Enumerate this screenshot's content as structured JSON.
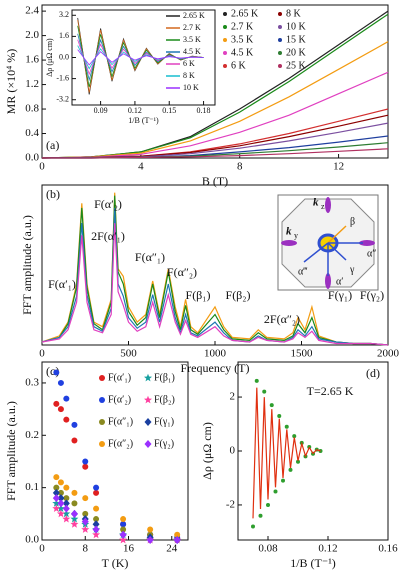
{
  "chart_data": [
    {
      "type": "line",
      "panel": "(a)",
      "xlabel": "B (T)",
      "ylabel": "MR (×10⁴ %)",
      "x": [
        0,
        2,
        4,
        6,
        8,
        10,
        12,
        14
      ],
      "xlim": [
        0,
        14
      ],
      "xticks": [
        0,
        4,
        8,
        12
      ],
      "ylim": [
        0,
        2.5
      ],
      "yticks": [
        {
          "value": 0,
          "label": "0.0"
        },
        0.4,
        0.8,
        1.2,
        1.6,
        {
          "value": 2,
          "label": "2.0"
        },
        2.4
      ],
      "series": [
        {
          "name": "2.65 K",
          "color": "#222222",
          "values": [
            0,
            0.02,
            0.1,
            0.35,
            0.8,
            1.3,
            1.85,
            2.4
          ]
        },
        {
          "name": "2.7 K",
          "color": "#1a8a1a",
          "values": [
            0,
            0.02,
            0.1,
            0.33,
            0.75,
            1.25,
            1.8,
            2.35
          ]
        },
        {
          "name": "3.5 K",
          "color": "#f39c12",
          "values": [
            0,
            0.02,
            0.08,
            0.28,
            0.6,
            1.0,
            1.45,
            1.9
          ]
        },
        {
          "name": "4.5 K",
          "color": "#e040c0",
          "values": [
            0,
            0.01,
            0.06,
            0.2,
            0.42,
            0.7,
            1.05,
            1.4
          ]
        },
        {
          "name": "6 K",
          "color": "#d32f2f",
          "values": [
            0,
            0.01,
            0.03,
            0.1,
            0.23,
            0.4,
            0.6,
            0.8
          ]
        },
        {
          "name": "8 K",
          "color": "#8b0000",
          "values": [
            0,
            0.01,
            0.03,
            0.09,
            0.2,
            0.35,
            0.52,
            0.7
          ]
        },
        {
          "name": "10 K",
          "color": "#7b4fa0",
          "values": [
            0,
            0.01,
            0.02,
            0.07,
            0.16,
            0.28,
            0.42,
            0.57
          ]
        },
        {
          "name": "15 K",
          "color": "#1f3f9f",
          "values": [
            0,
            0,
            0.01,
            0.04,
            0.1,
            0.17,
            0.26,
            0.36
          ]
        },
        {
          "name": "20 K",
          "color": "#2e7d32",
          "values": [
            0,
            0,
            0.01,
            0.03,
            0.07,
            0.12,
            0.18,
            0.25
          ]
        },
        {
          "name": "25 K",
          "color": "#b03060",
          "values": [
            0,
            0,
            0.01,
            0.02,
            0.04,
            0.07,
            0.11,
            0.15
          ]
        }
      ]
    },
    {
      "type": "line",
      "xlabel": "1/B (T⁻¹)",
      "ylabel": "Δρ (μΩ cm)",
      "x": [
        0.07,
        0.08,
        0.09,
        0.1,
        0.11,
        0.12,
        0.13,
        0.14,
        0.15,
        0.16,
        0.17,
        0.18
      ],
      "xlim": [
        0.065,
        0.19
      ],
      "xticks": [
        0.09,
        0.12,
        0.15,
        0.18
      ],
      "ylim": [
        -3.6,
        3.6
      ],
      "yticks": [
        -3.2,
        -1.6,
        {
          "value": 0,
          "label": "0.0"
        },
        1.6,
        3.2
      ],
      "series": [
        {
          "name": "2.65 K",
          "color": "#222222",
          "values": [
            3.0,
            -2.8,
            2.2,
            -1.8,
            1.4,
            -1.0,
            0.7,
            -0.5,
            0.3,
            -0.2,
            0.1,
            0
          ]
        },
        {
          "name": "2.7 K",
          "color": "#d2691e",
          "values": [
            2.85,
            -2.66,
            2.09,
            -1.71,
            1.33,
            -0.95,
            0.67,
            -0.48,
            0.29,
            -0.19,
            0.1,
            0
          ]
        },
        {
          "name": "3.5 K",
          "color": "#1a8a1a",
          "values": [
            2.4,
            -2.24,
            1.76,
            -1.44,
            1.12,
            -0.8,
            0.56,
            -0.4,
            0.24,
            -0.16,
            0.08,
            0
          ]
        },
        {
          "name": "4.5 K",
          "color": "#1f77b4",
          "values": [
            1.8,
            -1.68,
            1.32,
            -1.08,
            0.84,
            -0.6,
            0.42,
            -0.3,
            0.18,
            -0.12,
            0.06,
            0
          ]
        },
        {
          "name": "6 K",
          "color": "#e040c0",
          "values": [
            1.35,
            -1.26,
            0.99,
            -0.81,
            0.63,
            -0.45,
            0.32,
            -0.23,
            0.14,
            -0.09,
            0.05,
            0
          ]
        },
        {
          "name": "8 K",
          "color": "#17becf",
          "values": [
            0.9,
            -0.84,
            0.66,
            -0.54,
            0.42,
            -0.3,
            0.21,
            -0.15,
            0.09,
            -0.06,
            0.03,
            0
          ]
        },
        {
          "name": "10 K",
          "color": "#9b30ff",
          "values": [
            0.6,
            -0.56,
            0.44,
            -0.36,
            0.28,
            -0.2,
            0.14,
            -0.1,
            0.06,
            -0.04,
            0.02,
            0
          ]
        }
      ]
    },
    {
      "type": "line",
      "panel": "(b)",
      "xlabel": "Frequency (T)",
      "ylabel": "FFT amplitude (a.u.)",
      "x": [
        0,
        100,
        150,
        200,
        230,
        260,
        300,
        350,
        400,
        420,
        440,
        470,
        500,
        550,
        600,
        640,
        680,
        730,
        770,
        800,
        830,
        860,
        900,
        1000,
        1050,
        1100,
        1200,
        1250,
        1300,
        1400,
        1450,
        1480,
        1520,
        1560,
        1600,
        1700,
        1800,
        1900,
        2000
      ],
      "xlim": [
        0,
        2000
      ],
      "xticks": [
        0,
        500,
        1000,
        1500,
        2000
      ],
      "ylim": [
        0,
        1.05
      ],
      "annotations": [
        "F(α′₁)",
        "F(α′₂)",
        "2F(α′₁)",
        "F(α″₁)",
        "F(α″₂)",
        "F(β₁)",
        "F(β₂)",
        "2F(α″₂)",
        "F(γ₁)",
        "F(γ₂)"
      ],
      "inset_labels": [
        "k",
        "z",
        "k",
        "y",
        "β",
        "α″",
        "γ",
        "α‴",
        "α′"
      ],
      "series": [
        {
          "color": "#f39c12",
          "values": [
            0.02,
            0.06,
            0.15,
            0.4,
            0.93,
            0.4,
            0.15,
            0.12,
            0.3,
            1.0,
            0.5,
            0.45,
            0.25,
            0.15,
            0.2,
            0.42,
            0.2,
            0.5,
            0.25,
            0.12,
            0.3,
            0.12,
            0.08,
            0.25,
            0.12,
            0.05,
            0.04,
            0.1,
            0.05,
            0.04,
            0.08,
            0.18,
            0.1,
            0.25,
            0.06,
            0.02,
            0.01,
            0.01,
            0
          ]
        },
        {
          "color": "#1a8a1a",
          "values": [
            0.02,
            0.05,
            0.14,
            0.38,
            0.9,
            0.38,
            0.14,
            0.1,
            0.28,
            0.98,
            0.48,
            0.4,
            0.22,
            0.13,
            0.18,
            0.4,
            0.18,
            0.48,
            0.22,
            0.1,
            0.26,
            0.1,
            0.07,
            0.2,
            0.1,
            0.04,
            0.03,
            0.08,
            0.04,
            0.03,
            0.06,
            0.14,
            0.08,
            0.18,
            0.05,
            0.02,
            0.01,
            0.01,
            0
          ]
        },
        {
          "color": "#1f77b4",
          "values": [
            0.02,
            0.05,
            0.12,
            0.32,
            0.8,
            0.33,
            0.12,
            0.09,
            0.24,
            0.9,
            0.4,
            0.32,
            0.18,
            0.11,
            0.15,
            0.33,
            0.15,
            0.4,
            0.18,
            0.08,
            0.2,
            0.08,
            0.06,
            0.15,
            0.08,
            0.03,
            0.02,
            0.06,
            0.03,
            0.02,
            0.05,
            0.1,
            0.06,
            0.12,
            0.04,
            0.02,
            0.01,
            0.01,
            0
          ]
        },
        {
          "color": "#e040c0",
          "values": [
            0.02,
            0.04,
            0.1,
            0.28,
            0.72,
            0.28,
            0.1,
            0.08,
            0.2,
            0.8,
            0.35,
            0.26,
            0.15,
            0.09,
            0.12,
            0.28,
            0.12,
            0.33,
            0.15,
            0.07,
            0.16,
            0.07,
            0.05,
            0.12,
            0.06,
            0.03,
            0.02,
            0.05,
            0.03,
            0.02,
            0.04,
            0.08,
            0.05,
            0.09,
            0.03,
            0.01,
            0.01,
            0.01,
            0
          ]
        }
      ]
    },
    {
      "type": "scatter",
      "panel": "(c)",
      "xlabel": "T (K)",
      "ylabel": "FFT amplitude (a.u.)",
      "x": [
        2.65,
        3.5,
        4.5,
        6,
        8,
        10,
        15,
        20,
        25
      ],
      "xlim": [
        0,
        27
      ],
      "xticks": [
        0,
        8,
        16,
        24
      ],
      "ylim": [
        0,
        0.34
      ],
      "yticks": [
        {
          "value": 0,
          "label": "0.0"
        },
        0.1,
        0.2,
        0.3
      ],
      "series": [
        {
          "name": "F(α′₁)",
          "color": "#e02020",
          "marker": "circle",
          "values": [
            0.26,
            0.25,
            0.23,
            0.19,
            0.14,
            0.09,
            0.03,
            0.01,
            0
          ]
        },
        {
          "name": "F(α′₂)",
          "color": "#2040e0",
          "marker": "circle",
          "values": [
            0.32,
            0.3,
            0.27,
            0.22,
            0.15,
            0.1,
            0.03,
            0.01,
            0.005
          ]
        },
        {
          "name": "F(α″₁)",
          "color": "#8a8a20",
          "marker": "circle",
          "values": [
            0.1,
            0.09,
            0.08,
            0.07,
            0.05,
            0.04,
            0.02,
            0.01,
            0
          ]
        },
        {
          "name": "F(α″₂)",
          "color": "#f39c12",
          "marker": "circle",
          "values": [
            0.12,
            0.11,
            0.1,
            0.09,
            0.08,
            0.06,
            0.04,
            0.02,
            0.01
          ]
        },
        {
          "name": "F(β₁)",
          "color": "#17a0a0",
          "marker": "star",
          "values": [
            0.07,
            0.06,
            0.05,
            0.04,
            0.03,
            0.02,
            0.01,
            0,
            0
          ]
        },
        {
          "name": "F(β₂)",
          "color": "#ff40a0",
          "marker": "star",
          "values": [
            0.06,
            0.05,
            0.04,
            0.03,
            0.02,
            0.01,
            0,
            0,
            0
          ]
        },
        {
          "name": "F(γ₁)",
          "color": "#1a3fa0",
          "marker": "diamond",
          "values": [
            0.09,
            0.08,
            0.07,
            0.05,
            0.04,
            0.03,
            0.01,
            0.005,
            0
          ]
        },
        {
          "name": "F(γ₂)",
          "color": "#9b30ff",
          "marker": "diamond",
          "values": [
            0.08,
            0.07,
            0.06,
            0.05,
            0.035,
            0.02,
            0.01,
            0,
            0
          ]
        }
      ]
    },
    {
      "type": "line",
      "panel": "(d)",
      "xlabel": "1/B (T⁻¹)",
      "ylabel": "Δρ (μΩ cm)",
      "annotation": "T=2.65 K",
      "x": [
        0.07,
        0.0725,
        0.075,
        0.0775,
        0.08,
        0.0825,
        0.085,
        0.0875,
        0.09,
        0.0925,
        0.095,
        0.0975,
        0.1,
        0.1025,
        0.105,
        0.1075,
        0.11,
        0.1125,
        0.115
      ],
      "xlim": [
        0.06,
        0.16
      ],
      "xticks": [
        0.08,
        0.12,
        0.16
      ],
      "ylim": [
        -3.3,
        3.3
      ],
      "yticks": [
        -2,
        0,
        2
      ],
      "series": [
        {
          "color": "#2e9e2e",
          "mode": "markers",
          "values": [
            -2.8,
            2.6,
            -2.4,
            2.2,
            -2.0,
            1.7,
            -1.5,
            1.3,
            -1.1,
            0.9,
            -0.7,
            0.55,
            -0.4,
            0.3,
            -0.2,
            0.15,
            -0.1,
            0.05,
            0
          ]
        },
        {
          "color": "#e03010",
          "mode": "line",
          "values": [
            -2.5,
            2.35,
            -2.15,
            2.0,
            -1.8,
            1.55,
            -1.35,
            1.2,
            -1.0,
            0.8,
            -0.63,
            0.5,
            -0.36,
            0.27,
            -0.18,
            0.13,
            -0.09,
            0.05,
            0
          ]
        }
      ]
    }
  ]
}
